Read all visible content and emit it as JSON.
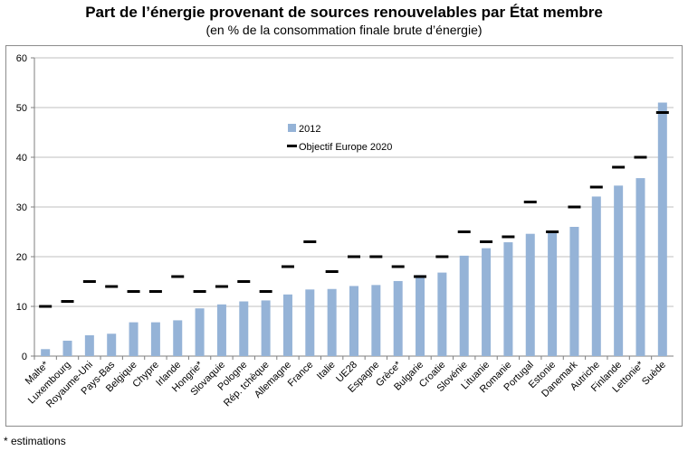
{
  "chart_data": {
    "type": "bar",
    "title": "Part de l’énergie provenant de sources renouvelables par État membre",
    "subtitle": "(en % de la consommation finale brute d’énergie)",
    "footnote": "* estimations",
    "categories": [
      "Malte*",
      "Luxembourg",
      "Royaume-Uni",
      "Pays-Bas",
      "Belgique",
      "Chypre",
      "Irlande",
      "Hongrie*",
      "Slovaquie",
      "Pologne",
      "Rép. tchèque",
      "Allemagne",
      "France",
      "Italie",
      "UE28",
      "Espagne",
      "Grèce*",
      "Bulgarie",
      "Croatie",
      "Slovénie",
      "Lituanie",
      "Romanie",
      "Portugal",
      "Estonie",
      "Danemark",
      "Autriche",
      "Finlande",
      "Lettonie*",
      "Suède"
    ],
    "series": [
      {
        "name": "2012",
        "type": "bar",
        "color": "#95b3d7",
        "values": [
          1.4,
          3.1,
          4.2,
          4.5,
          6.8,
          6.8,
          7.2,
          9.6,
          10.4,
          11.0,
          11.2,
          12.4,
          13.4,
          13.5,
          14.1,
          14.3,
          15.1,
          16.3,
          16.8,
          20.2,
          21.7,
          22.9,
          24.6,
          25.2,
          26.0,
          32.1,
          34.3,
          35.8,
          51.0
        ]
      },
      {
        "name": "Objectif Europe 2020",
        "type": "marker",
        "color": "#000000",
        "values": [
          10,
          11,
          15,
          14,
          13,
          13,
          16,
          13,
          14,
          15,
          13,
          18,
          23,
          17,
          20,
          20,
          18,
          16,
          20,
          25,
          23,
          24,
          31,
          25,
          30,
          34,
          38,
          40,
          49
        ]
      }
    ],
    "ylim": [
      0,
      60
    ],
    "yticks": [
      0,
      10,
      20,
      30,
      40,
      50,
      60
    ],
    "grid": true,
    "legend_position": "center-left"
  }
}
